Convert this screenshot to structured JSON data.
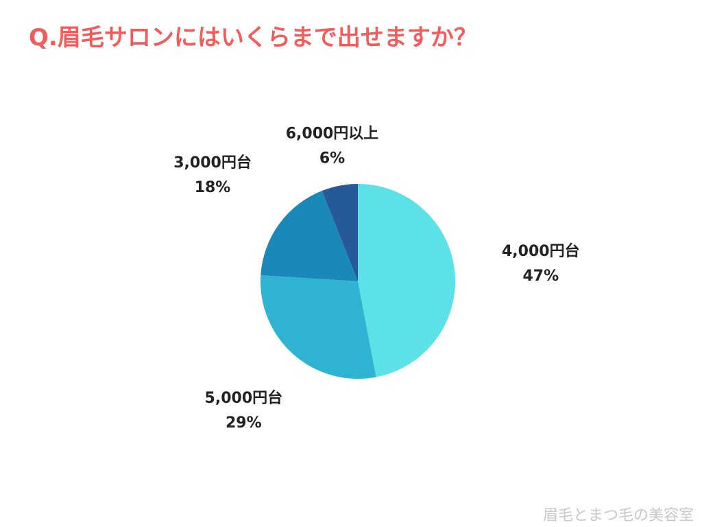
{
  "chart_data": {
    "type": "pie",
    "title": "Q.眉毛サロンにはいくらまで出せますか？",
    "categories": [
      "4,000円台",
      "5,000円台",
      "3,000円台",
      "6,000円以上"
    ],
    "values": [
      47,
      29,
      18,
      6
    ],
    "value_labels": [
      "47%",
      "29%",
      "18%",
      "6%"
    ],
    "colors": [
      "#5ce1e6",
      "#2fb3d3",
      "#1a89b9",
      "#26599a"
    ],
    "watermark": "眉毛とまつ毛の美容室"
  }
}
